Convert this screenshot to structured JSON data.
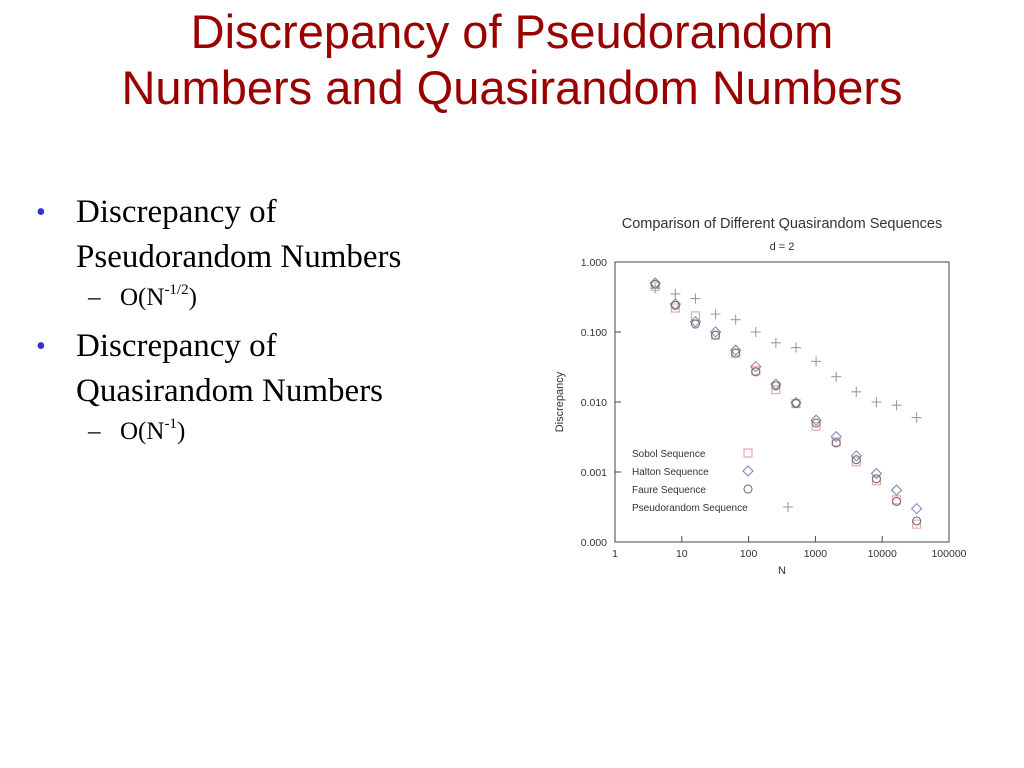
{
  "slide": {
    "title_line1": "Discrepancy of Pseudorandom",
    "title_line2": "Numbers and Quasirandom Numbers",
    "title_color": "#990000",
    "bullet_color": "#3333cc",
    "bullets": [
      {
        "line1": "Discrepancy of",
        "line2": "Pseudorandom Numbers",
        "sub_prefix": "O(N",
        "sub_exp": "-1/2",
        "sub_suffix": ")"
      },
      {
        "line1": "Discrepancy of",
        "line2": "Quasirandom Numbers",
        "sub_prefix": "O(N",
        "sub_exp": "-1",
        "sub_suffix": ")"
      }
    ]
  },
  "chart_data": {
    "type": "scatter",
    "title": "Comparison of Different Quasirandom Sequences",
    "subtitle": "d = 2",
    "xlabel": "N",
    "ylabel": "Discrepancy",
    "x_scale": "log",
    "y_scale": "log",
    "xlim": [
      1,
      100000
    ],
    "ylim": [
      0.0001,
      1.0
    ],
    "x_ticks": [
      1,
      10,
      100,
      1000,
      10000,
      100000
    ],
    "x_tick_labels": [
      "1",
      "10",
      "100",
      "1000",
      "10000",
      "100000"
    ],
    "y_ticks": [
      0.0001,
      0.001,
      0.01,
      0.1,
      1.0
    ],
    "y_tick_labels": [
      "0.000",
      "0.001",
      "0.010",
      "0.100",
      "1.000"
    ],
    "grid": false,
    "legend_position": "bottom-left",
    "series": [
      {
        "name": "Sobol Sequence",
        "marker": "square",
        "color": "#e6a3a3",
        "x": [
          4,
          8,
          16,
          32,
          64,
          128,
          256,
          512,
          1024,
          2048,
          4096,
          8192,
          16384,
          32768
        ],
        "y": [
          0.45,
          0.22,
          0.17,
          0.09,
          0.05,
          0.028,
          0.015,
          0.0095,
          0.0045,
          0.0027,
          0.0014,
          0.00075,
          0.0004,
          0.00018
        ]
      },
      {
        "name": "Halton Sequence",
        "marker": "diamond",
        "color": "#8a8ab8",
        "x": [
          4,
          8,
          16,
          32,
          64,
          128,
          256,
          512,
          1024,
          2048,
          4096,
          8192,
          16384,
          32768
        ],
        "y": [
          0.5,
          0.25,
          0.14,
          0.1,
          0.055,
          0.032,
          0.018,
          0.0098,
          0.0055,
          0.0032,
          0.0017,
          0.00095,
          0.00055,
          0.0003
        ]
      },
      {
        "name": "Faure Sequence",
        "marker": "circle",
        "color": "#707070",
        "x": [
          4,
          8,
          16,
          32,
          64,
          128,
          256,
          512,
          1024,
          2048,
          4096,
          8192,
          16384,
          32768
        ],
        "y": [
          0.48,
          0.24,
          0.13,
          0.09,
          0.05,
          0.027,
          0.017,
          0.0095,
          0.005,
          0.0026,
          0.0015,
          0.0008,
          0.00038,
          0.0002
        ]
      },
      {
        "name": "Pseudorandom Sequence",
        "marker": "plus",
        "color": "#9a9ab0",
        "x": [
          4,
          8,
          16,
          32,
          64,
          128,
          256,
          512,
          1024,
          2048,
          4096,
          8192,
          16384,
          32768
        ],
        "y": [
          0.42,
          0.35,
          0.3,
          0.18,
          0.15,
          0.1,
          0.07,
          0.06,
          0.038,
          0.023,
          0.014,
          0.01,
          0.009,
          0.006
        ]
      }
    ]
  }
}
